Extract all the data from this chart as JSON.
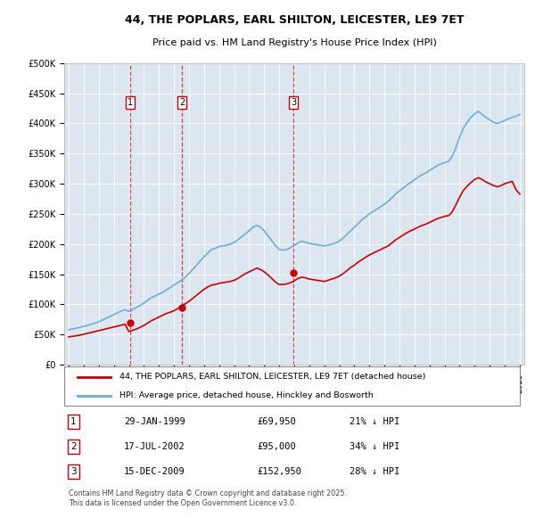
{
  "title_line1": "44, THE POPLARS, EARL SHILTON, LEICESTER, LE9 7ET",
  "title_line2": "Price paid vs. HM Land Registry's House Price Index (HPI)",
  "ylabel": "",
  "background_color": "#dce6f0",
  "plot_bg_color": "#dce6f0",
  "hpi_color": "#6baed6",
  "price_color": "#cc0000",
  "sale_marker_color": "#cc0000",
  "ylim": [
    0,
    500000
  ],
  "yticks": [
    0,
    50000,
    100000,
    150000,
    200000,
    250000,
    300000,
    350000,
    400000,
    450000,
    500000
  ],
  "sale_dates": [
    1999.08,
    2002.54,
    2009.96
  ],
  "sale_prices": [
    69950,
    95000,
    152950
  ],
  "sale_labels": [
    "1",
    "2",
    "3"
  ],
  "annotation_rows": [
    [
      "1",
      "29-JAN-1999",
      "£69,950",
      "21% ↓ HPI"
    ],
    [
      "2",
      "17-JUL-2002",
      "£95,000",
      "34% ↓ HPI"
    ],
    [
      "3",
      "15-DEC-2009",
      "£152,950",
      "28% ↓ HPI"
    ]
  ],
  "legend_line1": "44, THE POPLARS, EARL SHILTON, LEICESTER, LE9 7ET (detached house)",
  "legend_line2": "HPI: Average price, detached house, Hinckley and Bosworth",
  "footnote": "Contains HM Land Registry data © Crown copyright and database right 2025.\nThis data is licensed under the Open Government Licence v3.0.",
  "hpi_years": [
    1995,
    1995.25,
    1995.5,
    1995.75,
    1996,
    1996.25,
    1996.5,
    1996.75,
    1997,
    1997.25,
    1997.5,
    1997.75,
    1998,
    1998.25,
    1998.5,
    1998.75,
    1999,
    1999.25,
    1999.5,
    1999.75,
    2000,
    2000.25,
    2000.5,
    2000.75,
    2001,
    2001.25,
    2001.5,
    2001.75,
    2002,
    2002.25,
    2002.5,
    2002.75,
    2003,
    2003.25,
    2003.5,
    2003.75,
    2004,
    2004.25,
    2004.5,
    2004.75,
    2005,
    2005.25,
    2005.5,
    2005.75,
    2006,
    2006.25,
    2006.5,
    2006.75,
    2007,
    2007.25,
    2007.5,
    2007.75,
    2008,
    2008.25,
    2008.5,
    2008.75,
    2009,
    2009.25,
    2009.5,
    2009.75,
    2010,
    2010.25,
    2010.5,
    2010.75,
    2011,
    2011.25,
    2011.5,
    2011.75,
    2012,
    2012.25,
    2012.5,
    2012.75,
    2013,
    2013.25,
    2013.5,
    2013.75,
    2014,
    2014.25,
    2014.5,
    2014.75,
    2015,
    2015.25,
    2015.5,
    2015.75,
    2016,
    2016.25,
    2016.5,
    2016.75,
    2017,
    2017.25,
    2017.5,
    2017.75,
    2018,
    2018.25,
    2018.5,
    2018.75,
    2019,
    2019.25,
    2019.5,
    2019.75,
    2020,
    2020.25,
    2020.5,
    2020.75,
    2021,
    2021.25,
    2021.5,
    2021.75,
    2022,
    2022.25,
    2022.5,
    2022.75,
    2023,
    2023.25,
    2023.5,
    2023.75,
    2024,
    2024.25,
    2024.5,
    2024.75,
    2025
  ],
  "hpi_values": [
    58000,
    59000,
    60500,
    62000,
    63500,
    65000,
    67000,
    69000,
    71000,
    74000,
    77000,
    80000,
    83000,
    86000,
    89000,
    91000,
    88600,
    91000,
    95000,
    98000,
    102000,
    107000,
    111000,
    114000,
    117000,
    120000,
    124000,
    128000,
    132000,
    136000,
    140000,
    145000,
    151000,
    158000,
    165000,
    172000,
    179000,
    185000,
    191000,
    193000,
    196000,
    197000,
    198000,
    200000,
    203000,
    207000,
    212000,
    217000,
    222000,
    228000,
    231000,
    228000,
    222000,
    214000,
    206000,
    197000,
    191000,
    190000,
    191000,
    194000,
    198000,
    202000,
    205000,
    203000,
    201000,
    200000,
    199000,
    198000,
    197000,
    198000,
    200000,
    202000,
    205000,
    210000,
    216000,
    222000,
    228000,
    234000,
    240000,
    245000,
    250000,
    254000,
    258000,
    262000,
    266000,
    271000,
    277000,
    283000,
    288000,
    293000,
    298000,
    302000,
    307000,
    311000,
    315000,
    318000,
    322000,
    326000,
    330000,
    333000,
    335000,
    337000,
    345000,
    360000,
    378000,
    392000,
    402000,
    410000,
    416000,
    420000,
    415000,
    410000,
    406000,
    402000,
    400000,
    402000,
    405000,
    408000,
    410000,
    412000,
    415000
  ],
  "price_years": [
    1995,
    1995.25,
    1995.5,
    1995.75,
    1996,
    1996.25,
    1996.5,
    1996.75,
    1997,
    1997.25,
    1997.5,
    1997.75,
    1998,
    1998.25,
    1998.5,
    1998.75,
    1999,
    1999.25,
    1999.5,
    1999.75,
    2000,
    2000.25,
    2000.5,
    2000.75,
    2001,
    2001.25,
    2001.5,
    2001.75,
    2002,
    2002.25,
    2002.5,
    2002.75,
    2003,
    2003.25,
    2003.5,
    2003.75,
    2004,
    2004.25,
    2004.5,
    2004.75,
    2005,
    2005.25,
    2005.5,
    2005.75,
    2006,
    2006.25,
    2006.5,
    2006.75,
    2007,
    2007.25,
    2007.5,
    2007.75,
    2008,
    2008.25,
    2008.5,
    2008.75,
    2009,
    2009.25,
    2009.5,
    2009.75,
    2010,
    2010.25,
    2010.5,
    2010.75,
    2011,
    2011.25,
    2011.5,
    2011.75,
    2012,
    2012.25,
    2012.5,
    2012.75,
    2013,
    2013.25,
    2013.5,
    2013.75,
    2014,
    2014.25,
    2014.5,
    2014.75,
    2015,
    2015.25,
    2015.5,
    2015.75,
    2016,
    2016.25,
    2016.5,
    2016.75,
    2017,
    2017.25,
    2017.5,
    2017.75,
    2018,
    2018.25,
    2018.5,
    2018.75,
    2019,
    2019.25,
    2019.5,
    2019.75,
    2020,
    2020.25,
    2020.5,
    2020.75,
    2021,
    2021.25,
    2021.5,
    2021.75,
    2022,
    2022.25,
    2022.5,
    2022.75,
    2023,
    2023.25,
    2023.5,
    2023.75,
    2024,
    2024.25,
    2024.5,
    2024.75,
    2025
  ],
  "price_indexed_values": [
    46000,
    47000,
    48000,
    49000,
    50500,
    52000,
    53500,
    55000,
    56500,
    58000,
    59500,
    61000,
    62500,
    64000,
    65500,
    67000,
    55000,
    57000,
    59000,
    62000,
    65000,
    69000,
    73000,
    76000,
    79000,
    82000,
    85000,
    87000,
    89500,
    93000,
    97000,
    101000,
    105000,
    110000,
    115000,
    120000,
    125000,
    129000,
    132000,
    133000,
    135000,
    136000,
    137000,
    138000,
    140000,
    143000,
    147000,
    151000,
    154000,
    157000,
    160000,
    158000,
    154000,
    149000,
    143000,
    137000,
    133000,
    133000,
    134000,
    136000,
    139000,
    143000,
    145000,
    144000,
    142000,
    141000,
    140000,
    139000,
    138000,
    140000,
    142000,
    144000,
    147000,
    151000,
    156000,
    161000,
    165000,
    170000,
    174000,
    178000,
    182000,
    185000,
    188000,
    191000,
    194000,
    197000,
    202000,
    207000,
    211000,
    215000,
    219000,
    222000,
    225000,
    228000,
    231000,
    233000,
    236000,
    239000,
    242000,
    244000,
    246000,
    247000,
    253000,
    265000,
    278000,
    289000,
    296000,
    302000,
    307000,
    310000,
    307000,
    303000,
    300000,
    297000,
    295000,
    297000,
    300000,
    302000,
    304000,
    290000,
    283000
  ]
}
